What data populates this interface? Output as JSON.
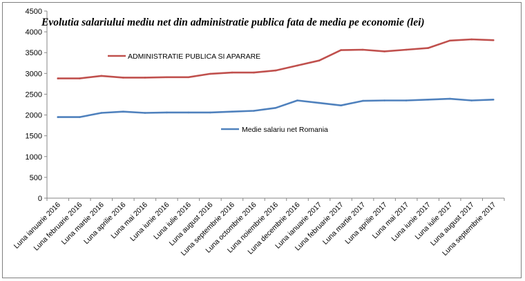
{
  "chart_data": {
    "type": "line",
    "title": "Evolutia salariului mediu net din administratie publica fata de media pe economie (lei)",
    "xlabel": "",
    "ylabel": "",
    "ylim": [
      0,
      4500
    ],
    "yticks": [
      0,
      500,
      1000,
      1500,
      2000,
      2500,
      3000,
      3500,
      4000,
      4500
    ],
    "grid": false,
    "categories": [
      "Luna ianuarie 2016",
      "Luna februarie 2016",
      "Luna martie 2016",
      "Luna aprilie 2016",
      "Luna mai 2016",
      "Luna iunie 2016",
      "Luna iulie 2016",
      "Luna august 2016",
      "Luna septembrie 2016",
      "Luna octombrie 2016",
      "Luna noiembrie 2016",
      "Luna decembrie 2016",
      "Luna ianuarie 2017",
      "Luna februarie 2017",
      "Luna martie 2017",
      "Luna aprilie 2017",
      "Luna mai 2017",
      "Luna iunie 2017",
      "Luna iulie 2017",
      "Luna august 2017",
      "Luna septembrie 2017"
    ],
    "series": [
      {
        "name": "ADMINISTRATIE  PUBLICA SI APARARE",
        "color": "#c0504d",
        "values": [
          2880,
          2880,
          2940,
          2900,
          2900,
          2910,
          2910,
          2990,
          3020,
          3020,
          3070,
          3190,
          3310,
          3560,
          3570,
          3530,
          3570,
          3610,
          3790,
          3820,
          3800
        ]
      },
      {
        "name": "Medie salariu net Romania",
        "color": "#4f81bd",
        "values": [
          1950,
          1950,
          2050,
          2080,
          2050,
          2060,
          2060,
          2060,
          2080,
          2100,
          2170,
          2350,
          2290,
          2230,
          2340,
          2350,
          2350,
          2370,
          2390,
          2350,
          2370
        ]
      }
    ],
    "legend": [
      "inside-top",
      "inside-middle"
    ]
  }
}
